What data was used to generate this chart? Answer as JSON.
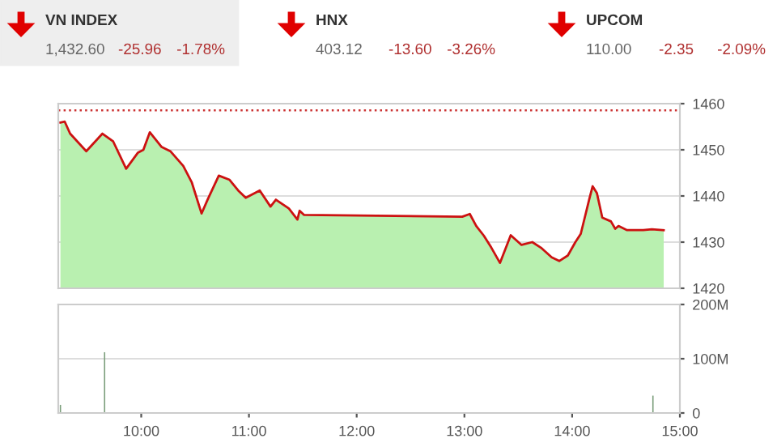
{
  "chart_data": [
    {
      "type": "other",
      "annotations": [
        "VN INDEX",
        "1,432.60",
        "-25.96",
        "-1.78%",
        "HNX",
        "403.12",
        "-13.60",
        "-3.26%",
        "UPCOM",
        "110.00",
        "-2.35",
        "-2.09%"
      ]
    },
    {
      "type": "area",
      "x": [
        9.25,
        9.29,
        9.34,
        9.49,
        9.64,
        9.74,
        9.86,
        9.97,
        10.02,
        10.08,
        10.19,
        10.27,
        10.39,
        10.47,
        10.56,
        10.62,
        10.72,
        10.82,
        10.9,
        10.97,
        11.1,
        11.2,
        11.25,
        11.37,
        11.45,
        11.47,
        11.51,
        12.98,
        13.05,
        13.11,
        13.18,
        13.25,
        13.33,
        13.43,
        13.53,
        13.63,
        13.71,
        13.81,
        13.88,
        13.96,
        14.03,
        14.08,
        14.16,
        14.19,
        14.23,
        14.28,
        14.36,
        14.4,
        14.43,
        14.51,
        14.66,
        14.74,
        14.85
      ],
      "series": [
        {
          "type": "area",
          "color": "#b9f0b0",
          "values": [
            1455.9,
            1456.1,
            1453.5,
            1449.7,
            1453.5,
            1451.8,
            1445.9,
            1449.4,
            1450.0,
            1453.8,
            1450.6,
            1449.7,
            1446.5,
            1442.9,
            1436.2,
            1439.4,
            1444.4,
            1443.5,
            1441.2,
            1439.6,
            1441.2,
            1437.7,
            1439.2,
            1437.3,
            1434.9,
            1436.8,
            1435.9,
            1435.5,
            1436.1,
            1433.5,
            1431.4,
            1428.8,
            1425.5,
            1431.5,
            1429.4,
            1430.0,
            1428.8,
            1426.7,
            1425.9,
            1427.1,
            1430.0,
            1431.8,
            1439.4,
            1442.1,
            1440.6,
            1435.3,
            1434.5,
            1432.9,
            1433.5,
            1432.6,
            1432.6,
            1432.8,
            1432.6
          ]
        },
        {
          "type": "line",
          "color": "#cc1111",
          "values": [
            1455.9,
            1456.1,
            1453.5,
            1449.7,
            1453.5,
            1451.8,
            1445.9,
            1449.4,
            1450.0,
            1453.8,
            1450.6,
            1449.7,
            1446.5,
            1442.9,
            1436.2,
            1439.4,
            1444.4,
            1443.5,
            1441.2,
            1439.6,
            1441.2,
            1437.7,
            1439.2,
            1437.3,
            1434.9,
            1436.8,
            1435.9,
            1435.5,
            1436.1,
            1433.5,
            1431.4,
            1428.8,
            1425.5,
            1431.5,
            1429.4,
            1430.0,
            1428.8,
            1426.7,
            1425.9,
            1427.1,
            1430.0,
            1431.8,
            1439.4,
            1442.1,
            1440.6,
            1435.3,
            1434.5,
            1432.9,
            1433.5,
            1432.6,
            1432.6,
            1432.8,
            1432.6
          ]
        }
      ],
      "xlim": [
        9.23,
        15
      ],
      "ylim": [
        1420,
        1460
      ],
      "yticks": [
        1420,
        1430,
        1440,
        1450,
        1460
      ],
      "grid": "y",
      "tick_labels": "y",
      "ref_lines": [
        {
          "axis": "y",
          "value": 1458.56,
          "color": "#cc3333",
          "line_style": "dotted"
        }
      ]
    },
    {
      "type": "bar",
      "x": [
        9.25,
        9.66,
        14.75
      ],
      "series": [
        {
          "color": "#7a9e7a",
          "values": [
            15,
            112,
            32
          ]
        }
      ],
      "xlim": [
        9.23,
        15
      ],
      "xticks": [
        {
          "value": 10,
          "label": "10:00"
        },
        {
          "value": 11,
          "label": "11:00"
        },
        {
          "value": 12,
          "label": "12:00"
        },
        {
          "value": 13,
          "label": "13:00"
        },
        {
          "value": 14,
          "label": "14:00"
        },
        {
          "value": 15,
          "label": "15:00"
        }
      ],
      "ylim": [
        0,
        200
      ],
      "yticks": [
        {
          "value": 0,
          "label": "0"
        },
        {
          "value": 100,
          "label": "100M"
        },
        {
          "value": 200,
          "label": "200M"
        }
      ],
      "grid": "y"
    }
  ]
}
